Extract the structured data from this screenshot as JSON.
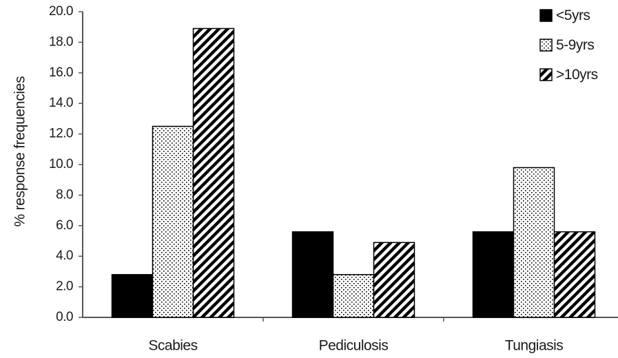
{
  "chart_data": {
    "type": "bar",
    "title": "",
    "xlabel": "",
    "ylabel": "% response frequencies",
    "ylim": [
      0,
      20
    ],
    "yticks": [
      "0.0",
      "2.0",
      "4.0",
      "6.0",
      "8.0",
      "10.0",
      "12.0",
      "14.0",
      "16.0",
      "18.0",
      "20.0"
    ],
    "categories": [
      "Scabies",
      "Pediculosis",
      "Tungiasis"
    ],
    "series": [
      {
        "name": "<5yrs",
        "values": [
          2.8,
          5.6,
          5.6
        ],
        "pattern": "solid"
      },
      {
        "name": "5-9yrs",
        "values": [
          12.5,
          2.8,
          9.8
        ],
        "pattern": "dotted"
      },
      {
        "name": ">10yrs",
        "values": [
          18.9,
          4.9,
          5.6
        ],
        "pattern": "diagonal-hatch"
      }
    ],
    "legend_position": "top-right",
    "grid": false,
    "colors": {
      "bar_fill": "#000000",
      "stroke": "#000000",
      "background": "#ffffff"
    }
  }
}
